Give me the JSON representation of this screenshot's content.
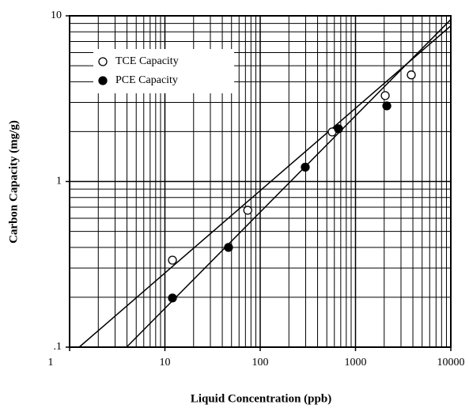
{
  "chart_data": {
    "type": "scatter",
    "xlabel": "Liquid Concentration (ppb)",
    "ylabel": "Carbon Capacity (mg/g)",
    "xscale": "log",
    "yscale": "log",
    "grid": true,
    "legend": "upper left",
    "xlim": [
      1,
      10000
    ],
    "ylim": [
      0.1,
      10
    ],
    "xticks": [
      1,
      10,
      100,
      1000,
      10000
    ],
    "yticks": [
      {
        "value": 0.1,
        "label": ".1"
      },
      1,
      10
    ],
    "series": [
      {
        "name": "TCE Capacity",
        "color": "#000000",
        "marker": "open",
        "x": [
          12,
          74,
          569,
          2050,
          3850
        ],
        "values": [
          0.335,
          0.67,
          1.99,
          3.3,
          4.4
        ],
        "fit": {
          "x": [
            1.26,
            10000
          ],
          "values": [
            0.1,
            8.7
          ]
        }
      },
      {
        "name": "PCE Capacity",
        "color": "#000000",
        "marker": "filled",
        "x": [
          12,
          46.5,
          297,
          663,
          2130
        ],
        "values": [
          0.198,
          0.4,
          1.22,
          2.08,
          2.86
        ],
        "fit": {
          "x": [
            3.96,
            10000
          ],
          "values": [
            0.1,
            9.5
          ]
        }
      }
    ]
  }
}
